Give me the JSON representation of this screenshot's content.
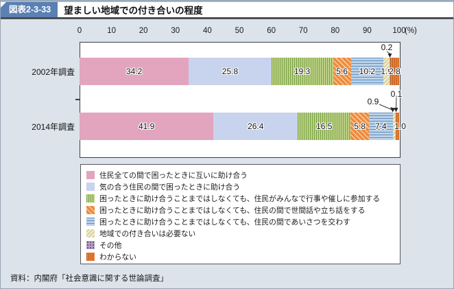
{
  "header": {
    "figure_label": "図表2-3-33",
    "title": "望ましい地域での付き合いの程度"
  },
  "footer": {
    "source": "資料：内閣府「社会意識に関する世論調査」"
  },
  "colors": {
    "badge_blue": "#5b80b3",
    "body_background": "#dce3eb",
    "plot_border": "#3a3d40",
    "series_pink": "#e2a5bd",
    "series_lavender": "#c8d3ed",
    "series_green": "#bed287",
    "series_orange_diag": "#ed8b3d",
    "series_blue_stripe": "#bcd1e7",
    "series_khaki": "#d9d3a0",
    "series_purple_dot": "#b7a0c6",
    "series_orange_vert": "#e98234"
  },
  "chart_data": {
    "type": "bar",
    "subtype": "horizontal-stacked",
    "title": "望ましい地域での付き合いの程度",
    "unit_label": "(%)",
    "xlim": [
      0,
      100
    ],
    "axis_ticks": [
      0,
      10,
      20,
      30,
      40,
      50,
      60,
      70,
      80,
      90,
      100
    ],
    "grid": false,
    "legend_position": "bottom-box",
    "categories": [
      "2002年調査",
      "2014年調査"
    ],
    "series": [
      {
        "name": "住民全ての間で困ったときに互いに助け合う",
        "pattern": "solid-pink",
        "values": [
          34.2,
          41.9
        ]
      },
      {
        "name": "気の合う住民の間で困ったときに助け合う",
        "pattern": "solid-lavender",
        "values": [
          25.8,
          26.4
        ]
      },
      {
        "name": "困ったときに助け合うことまではしなくても、住民がみんなで行事や催しに参加する",
        "pattern": "green-vertical-stripes",
        "values": [
          19.3,
          16.5
        ]
      },
      {
        "name": "困ったときに助け合うことまではしなくても、住民の間で世間話や立ち話をする",
        "pattern": "orange-diagonal-stripes",
        "values": [
          5.6,
          5.8
        ]
      },
      {
        "name": "困ったときに助け合うことまではしなくても、住民の間であいさつを交わす",
        "pattern": "blue-horizontal-stripes",
        "values": [
          10.2,
          7.4
        ]
      },
      {
        "name": "地域での付き合いは必要ない",
        "pattern": "khaki-diagonal-stripes",
        "values": [
          1.9,
          0.9
        ]
      },
      {
        "name": "その他",
        "pattern": "purple-dots",
        "values": [
          0.2,
          0.1
        ]
      },
      {
        "name": "わからない",
        "pattern": "orange-vertical-stripes",
        "values": [
          2.8,
          1.0
        ]
      }
    ],
    "annotations": [
      {
        "category": "2002年調査",
        "series": "その他",
        "text": "0.2"
      },
      {
        "category": "2014年調査",
        "series": "地域での付き合いは必要ない",
        "text": "0.9"
      },
      {
        "category": "2014年調査",
        "series": "その他",
        "text": "0.1"
      }
    ]
  }
}
